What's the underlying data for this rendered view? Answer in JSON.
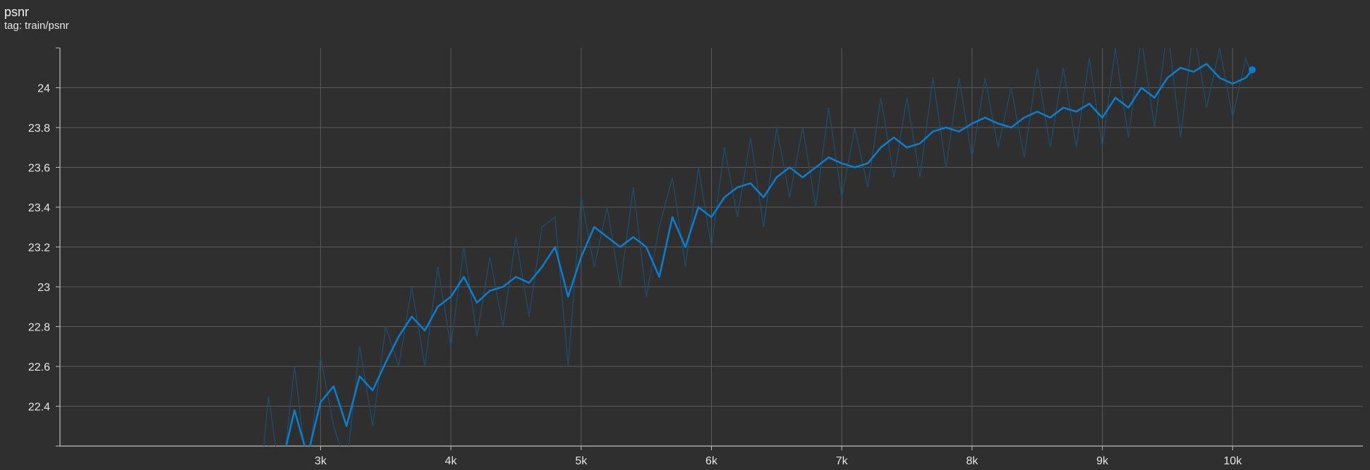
{
  "card": {
    "title": "psnr",
    "tag_label": "tag: train/psnr"
  },
  "colors": {
    "background": "#2f2f2f",
    "grid": "#5a5a5a",
    "axis": "#bdbdbd",
    "smoothed_line": "#0d7ccc",
    "raw_line": "#1c4f6e"
  },
  "chart_data": {
    "type": "line",
    "title": "psnr",
    "xlabel": "",
    "ylabel": "",
    "xlim": [
      1000,
      11000
    ],
    "ylim": [
      22.2,
      24.2
    ],
    "x_ticks": [
      3000,
      4000,
      5000,
      6000,
      7000,
      8000,
      9000,
      10000
    ],
    "x_tick_labels": [
      "3k",
      "4k",
      "5k",
      "6k",
      "7k",
      "8k",
      "9k",
      "10k"
    ],
    "y_ticks": [
      22.4,
      22.6,
      22.8,
      23,
      23.2,
      23.4,
      23.6,
      23.8,
      24
    ],
    "y_tick_labels": [
      "22.4",
      "22.6",
      "22.8",
      "23",
      "23.2",
      "23.4",
      "23.6",
      "23.8",
      "24"
    ],
    "grid": true,
    "legend": "none",
    "series": [
      {
        "style": "smoothed",
        "x": [
          2550,
          2600,
          2700,
          2800,
          2900,
          3000,
          3100,
          3200,
          3300,
          3400,
          3500,
          3600,
          3700,
          3800,
          3900,
          4000,
          4100,
          4200,
          4300,
          4400,
          4500,
          4600,
          4700,
          4800,
          4900,
          5000,
          5100,
          5200,
          5300,
          5400,
          5500,
          5600,
          5700,
          5800,
          5900,
          6000,
          6100,
          6200,
          6300,
          6400,
          6500,
          6600,
          6700,
          6800,
          6900,
          7000,
          7100,
          7200,
          7300,
          7400,
          7500,
          7600,
          7700,
          7800,
          7900,
          8000,
          8100,
          8200,
          8300,
          8400,
          8500,
          8600,
          8700,
          8800,
          8900,
          9000,
          9100,
          9200,
          9300,
          9400,
          9500,
          9600,
          9700,
          9800,
          9900,
          10000,
          10100,
          10150
        ],
        "values": [
          22.15,
          22.2,
          22.1,
          22.38,
          22.15,
          22.42,
          22.5,
          22.3,
          22.55,
          22.48,
          22.62,
          22.75,
          22.85,
          22.78,
          22.9,
          22.95,
          23.05,
          22.92,
          22.98,
          23.0,
          23.05,
          23.02,
          23.1,
          23.2,
          22.95,
          23.15,
          23.3,
          23.25,
          23.2,
          23.25,
          23.2,
          23.05,
          23.35,
          23.2,
          23.4,
          23.35,
          23.45,
          23.5,
          23.52,
          23.45,
          23.55,
          23.6,
          23.55,
          23.6,
          23.65,
          23.62,
          23.6,
          23.62,
          23.7,
          23.75,
          23.7,
          23.72,
          23.78,
          23.8,
          23.78,
          23.82,
          23.85,
          23.82,
          23.8,
          23.85,
          23.88,
          23.85,
          23.9,
          23.88,
          23.92,
          23.85,
          23.95,
          23.9,
          24.0,
          23.95,
          24.05,
          24.1,
          24.08,
          24.12,
          24.05,
          24.02,
          24.05,
          24.09
        ]
      },
      {
        "style": "raw",
        "x": [
          2550,
          2600,
          2700,
          2800,
          2900,
          3000,
          3100,
          3200,
          3300,
          3400,
          3500,
          3600,
          3700,
          3800,
          3900,
          4000,
          4100,
          4200,
          4300,
          4400,
          4500,
          4600,
          4700,
          4800,
          4900,
          5000,
          5100,
          5200,
          5300,
          5400,
          5500,
          5600,
          5700,
          5800,
          5900,
          6000,
          6100,
          6200,
          6300,
          6400,
          6500,
          6600,
          6700,
          6800,
          6900,
          7000,
          7100,
          7200,
          7300,
          7400,
          7500,
          7600,
          7700,
          7800,
          7900,
          8000,
          8100,
          8200,
          8300,
          8400,
          8500,
          8600,
          8700,
          8800,
          8900,
          9000,
          9100,
          9200,
          9300,
          9400,
          9500,
          9600,
          9700,
          9800,
          9900,
          10000,
          10100,
          10150
        ],
        "values": [
          22.1,
          22.45,
          22.0,
          22.6,
          22.05,
          22.65,
          22.3,
          22.1,
          22.7,
          22.3,
          22.8,
          22.6,
          23.0,
          22.6,
          23.1,
          22.7,
          23.2,
          22.75,
          23.15,
          22.8,
          23.25,
          22.85,
          23.3,
          23.35,
          22.6,
          23.45,
          23.1,
          23.4,
          23.0,
          23.5,
          22.95,
          23.3,
          23.55,
          23.1,
          23.6,
          23.2,
          23.7,
          23.35,
          23.75,
          23.3,
          23.8,
          23.45,
          23.8,
          23.4,
          23.9,
          23.45,
          23.8,
          23.5,
          23.95,
          23.55,
          23.95,
          23.55,
          24.05,
          23.6,
          24.05,
          23.65,
          24.05,
          23.7,
          24.0,
          23.65,
          24.1,
          23.7,
          24.1,
          23.7,
          24.15,
          23.7,
          24.2,
          23.75,
          24.25,
          23.8,
          24.3,
          23.75,
          24.3,
          23.9,
          24.2,
          23.85,
          24.15,
          24.05
        ]
      }
    ]
  }
}
